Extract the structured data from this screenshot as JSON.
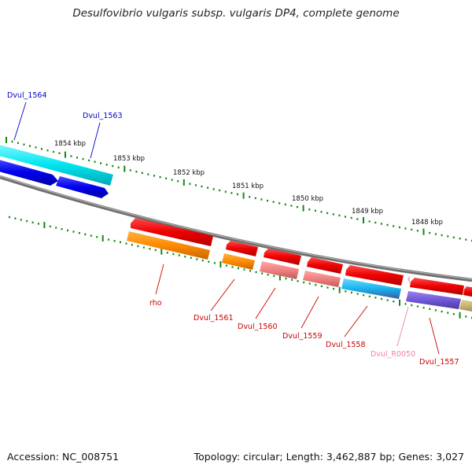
{
  "title": "Desulfovibrio vulgaris subsp. vulgaris DP4, complete genome",
  "accession": "Accession: NC_008751",
  "topology": "Topology: circular; Length: 3,462,887 bp; Genes: 3,027",
  "colors": {
    "dark_red_label": "#cc0000",
    "blue_label": "#0000cc",
    "pink_label": "#f080b0",
    "tick_green": "#118811",
    "backbone": "#808080"
  },
  "ticks": [
    {
      "label": "1854 kbp",
      "gene": null
    },
    {
      "label": "1853 kbp"
    },
    {
      "label": "1852 kbp"
    },
    {
      "label": "1851 kbp"
    },
    {
      "label": "1850 kbp"
    },
    {
      "label": "1849 kbp"
    },
    {
      "label": "1848 kbp"
    }
  ],
  "genes": [
    {
      "name": "Dvul_1564",
      "strand": "-",
      "label_color": "blue"
    },
    {
      "name": "Dvul_1563",
      "strand": "-",
      "label_color": "blue"
    },
    {
      "name": "rho",
      "strand": "+",
      "label_color": "red"
    },
    {
      "name": "Dvul_1561",
      "strand": "+",
      "label_color": "red"
    },
    {
      "name": "Dvul_1560",
      "strand": "+",
      "label_color": "red"
    },
    {
      "name": "Dvul_1559",
      "strand": "+",
      "label_color": "red"
    },
    {
      "name": "Dvul_1558",
      "strand": "+",
      "label_color": "red"
    },
    {
      "name": "Dvul_R0050",
      "strand": "+",
      "label_color": "pink"
    },
    {
      "name": "Dvul_1557",
      "strand": "+",
      "label_color": "red"
    }
  ]
}
